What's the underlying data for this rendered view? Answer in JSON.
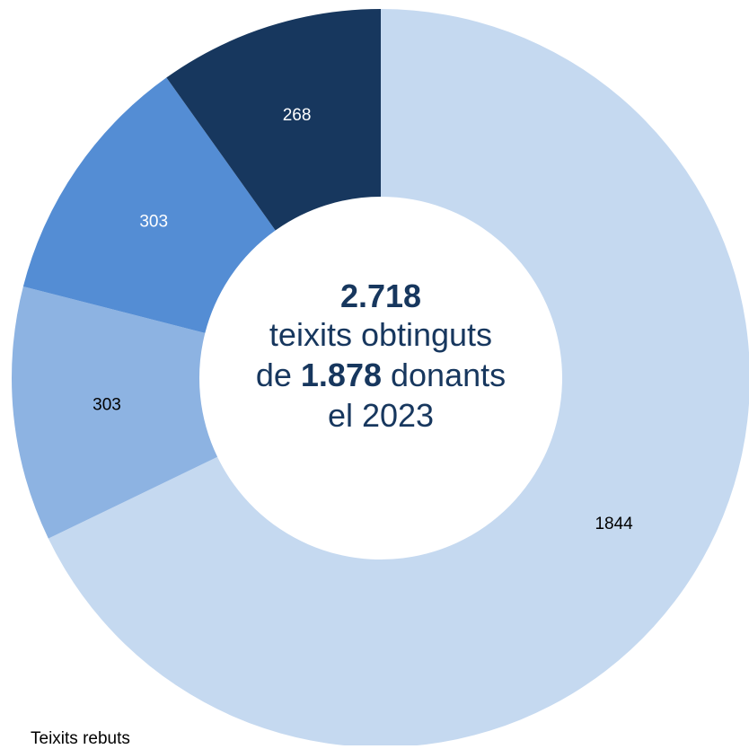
{
  "chart_data": {
    "type": "pie",
    "donut": true,
    "categories": [
      "",
      "",
      "",
      ""
    ],
    "values": [
      1844,
      303,
      303,
      268
    ],
    "labels": [
      "1844",
      "303",
      "303",
      "268"
    ],
    "colors": [
      "#c5d9f0",
      "#8db3e2",
      "#548dd4",
      "#17375e"
    ],
    "label_colors": [
      "#000000",
      "#000000",
      "#ffffff",
      "#ffffff"
    ],
    "start": "top",
    "direction": "clockwise"
  },
  "center": {
    "total": "2.718",
    "line1": "teixits obtinguts",
    "line2_prefix": "de ",
    "line2_value": "1.878",
    "line2_suffix": " donants",
    "line3": "el 2023"
  },
  "footer": {
    "legend_text": "Teixits  rebuts"
  }
}
